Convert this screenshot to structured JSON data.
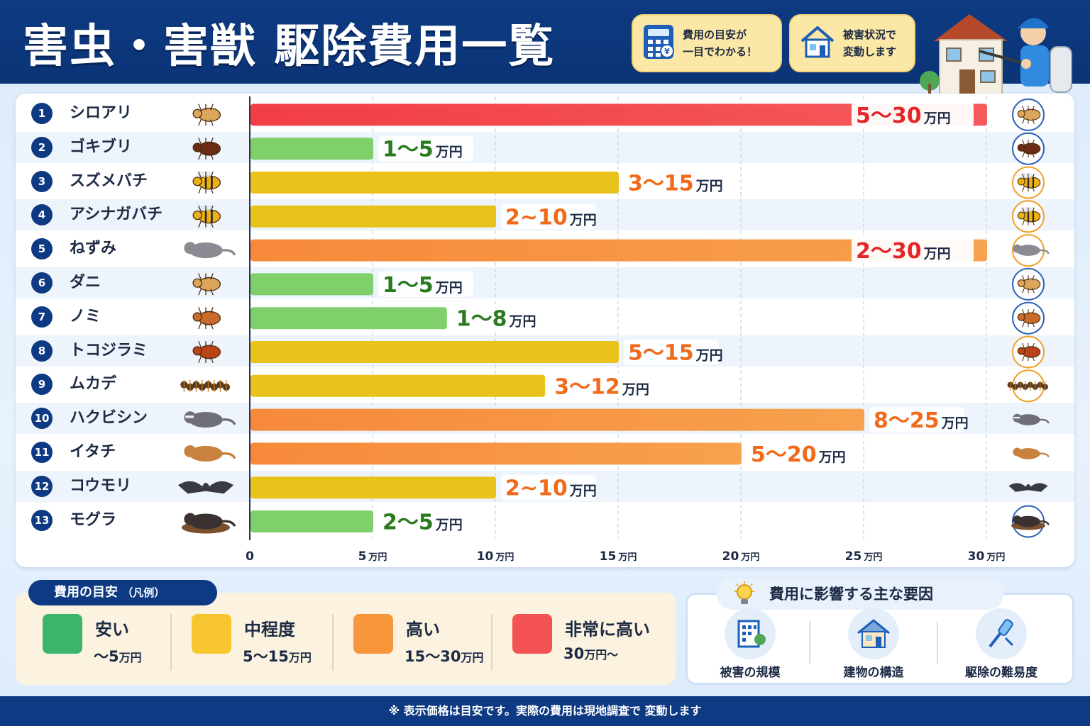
{
  "header": {
    "title": "害虫・害獣 駆除費用一覧",
    "badge1": {
      "line1": "費用の目安が",
      "line2": "一目でわかる！",
      "icon": "calculator-icon"
    },
    "badge2": {
      "line1": "被害状況で",
      "line2": "変動します",
      "icon": "house-icon"
    }
  },
  "chart_data": {
    "type": "bar",
    "orientation": "horizontal-range",
    "xlim": [
      0,
      30
    ],
    "x_ticks": [
      {
        "value": 0,
        "label": "0"
      },
      {
        "value": 5,
        "label": "5",
        "unit": "万円"
      },
      {
        "value": 10,
        "label": "10",
        "unit": "万円"
      },
      {
        "value": 15,
        "label": "15",
        "unit": "万円"
      },
      {
        "value": 20,
        "label": "20",
        "unit": "万円"
      },
      {
        "value": 25,
        "label": "25",
        "unit": "万円"
      },
      {
        "value": 30,
        "label": "30",
        "unit": "万円"
      }
    ],
    "grid": true,
    "rows": [
      {
        "rank": "1",
        "name": "シロアリ",
        "min": 5,
        "max": 30,
        "range": "5～30",
        "unit": "万円",
        "level": "very-high",
        "icon": "termite-icon"
      },
      {
        "rank": "2",
        "name": "ゴキブリ",
        "min": 1,
        "max": 5,
        "range": "1～5",
        "unit": "万円",
        "level": "low",
        "icon": "cockroach-icon"
      },
      {
        "rank": "3",
        "name": "スズメバチ",
        "min": 3,
        "max": 15,
        "range": "3～15",
        "unit": "万円",
        "level": "medium",
        "icon": "hornet-icon"
      },
      {
        "rank": "4",
        "name": "アシナガバチ",
        "min": 2,
        "max": 10,
        "range": "2~10",
        "unit": "万円",
        "level": "medium",
        "icon": "paper-wasp-icon"
      },
      {
        "rank": "5",
        "name": "ねずみ",
        "min": 2,
        "max": 30,
        "range": "2～30",
        "unit": "万円",
        "level": "high",
        "icon": "mouse-icon"
      },
      {
        "rank": "6",
        "name": "ダニ",
        "min": 1,
        "max": 5,
        "range": "1～5",
        "unit": "万円",
        "level": "low",
        "icon": "tick-icon"
      },
      {
        "rank": "7",
        "name": "ノミ",
        "min": 1,
        "max": 8,
        "range": "1～8",
        "unit": "万円",
        "level": "low",
        "icon": "flea-icon"
      },
      {
        "rank": "8",
        "name": "トコジラミ",
        "min": 5,
        "max": 15,
        "range": "5～15",
        "unit": "万円",
        "level": "medium",
        "icon": "bedbug-icon"
      },
      {
        "rank": "9",
        "name": "ムカデ",
        "min": 3,
        "max": 12,
        "range": "3～12",
        "unit": "万円",
        "level": "medium",
        "icon": "centipede-icon"
      },
      {
        "rank": "10",
        "name": "ハクビシン",
        "min": 8,
        "max": 25,
        "range": "8～25",
        "unit": "万円",
        "level": "high",
        "icon": "civet-icon"
      },
      {
        "rank": "11",
        "name": "イタチ",
        "min": 5,
        "max": 20,
        "range": "5～20",
        "unit": "万円",
        "level": "high",
        "icon": "weasel-icon"
      },
      {
        "rank": "12",
        "name": "コウモリ",
        "min": 2,
        "max": 10,
        "range": "2~10",
        "unit": "万円",
        "level": "medium",
        "icon": "bat-icon"
      },
      {
        "rank": "13",
        "name": "モグラ",
        "min": 2,
        "max": 5,
        "range": "2～5",
        "unit": "万円",
        "level": "low",
        "icon": "mole-icon"
      }
    ],
    "plotted_value": "max"
  },
  "colors": {
    "low": "#3cb56a",
    "medium": "#f7c52e",
    "high": "#f7963a",
    "very-high": "#f45356",
    "navy": "#0d3a82",
    "label_low": "#2c7a1e",
    "label_high": "#f06a1a",
    "label_top": "#e3262a"
  },
  "legend": {
    "title": "費用の目安",
    "title_note": "（凡例）",
    "items": [
      {
        "name": "安い",
        "range": "～5",
        "unit": "万円",
        "level": "low"
      },
      {
        "name": "中程度",
        "range": "5～15",
        "unit": "万円",
        "level": "medium"
      },
      {
        "name": "高い",
        "range": "15～30",
        "unit": "万円",
        "level": "high"
      },
      {
        "name": "非常に高い",
        "range": "30",
        "unit": "万円～",
        "level": "very-high"
      }
    ]
  },
  "factors": {
    "title": "費用に影響する主な要因",
    "items": [
      {
        "label": "被害の規模",
        "icon": "building-icon"
      },
      {
        "label": "建物の構造",
        "icon": "house-icon"
      },
      {
        "label": "駆除の難易度",
        "icon": "sprayer-icon"
      }
    ]
  },
  "footer": {
    "note": "※ 表示価格は目安です。実際の費用は現地調査で 変動します"
  }
}
